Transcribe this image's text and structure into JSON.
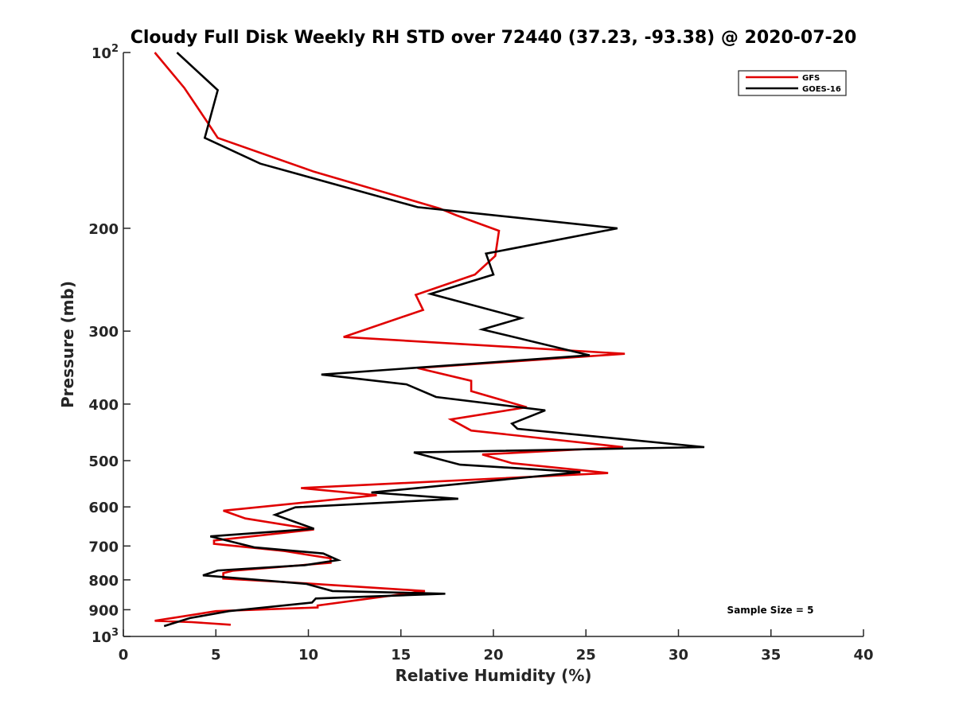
{
  "chart_data": {
    "type": "line",
    "title": "Cloudy Full Disk Weekly RH STD over 72440 (37.23, -93.38) @ 2020-07-20",
    "xlabel": "Relative Humidity (%)",
    "ylabel": "Pressure (mb)",
    "xlim": [
      0,
      40
    ],
    "ylim": [
      100,
      1000
    ],
    "y_scale": "log",
    "y_reversed": true,
    "x_ticks": [
      0,
      5,
      10,
      15,
      20,
      25,
      30,
      35,
      40
    ],
    "x_tick_labels": [
      "0",
      "5",
      "10",
      "15",
      "20",
      "25",
      "30",
      "35",
      "40"
    ],
    "y_ticks": [
      100,
      200,
      300,
      400,
      500,
      600,
      700,
      800,
      900,
      1000
    ],
    "y_tick_labels": [
      {
        "base": "10",
        "exp": "2"
      },
      {
        "base": "200",
        "exp": ""
      },
      {
        "base": "300",
        "exp": ""
      },
      {
        "base": "400",
        "exp": ""
      },
      {
        "base": "500",
        "exp": ""
      },
      {
        "base": "600",
        "exp": ""
      },
      {
        "base": "700",
        "exp": ""
      },
      {
        "base": "800",
        "exp": ""
      },
      {
        "base": "900",
        "exp": ""
      },
      {
        "base": "10",
        "exp": "3"
      }
    ],
    "grid": false,
    "legend_position": "top-right",
    "annotation": "Sample Size = 5",
    "series": [
      {
        "name": "GFS",
        "color": "#e00000",
        "points": [
          [
            1.7,
            100
          ],
          [
            3.3,
            115
          ],
          [
            4.5,
            131
          ],
          [
            5.1,
            140
          ],
          [
            10.3,
            160
          ],
          [
            17.1,
            185
          ],
          [
            18.0,
            190
          ],
          [
            20.3,
            202
          ],
          [
            20.1,
            223
          ],
          [
            19.0,
            240
          ],
          [
            15.8,
            260
          ],
          [
            16.2,
            276
          ],
          [
            11.9,
            307
          ],
          [
            27.1,
            328
          ],
          [
            15.9,
            347
          ],
          [
            18.8,
            365
          ],
          [
            18.8,
            380
          ],
          [
            21.8,
            405
          ],
          [
            17.7,
            425
          ],
          [
            18.8,
            444
          ],
          [
            27.0,
            474
          ],
          [
            19.4,
            488
          ],
          [
            21.0,
            505
          ],
          [
            26.2,
            525
          ],
          [
            9.6,
            557
          ],
          [
            13.7,
            573
          ],
          [
            5.4,
            609
          ],
          [
            6.6,
            628
          ],
          [
            10.3,
            656
          ],
          [
            4.9,
            685
          ],
          [
            4.9,
            694
          ],
          [
            8.7,
            714
          ],
          [
            11.2,
            735
          ],
          [
            11.2,
            748
          ],
          [
            5.9,
            772
          ],
          [
            5.4,
            779
          ],
          [
            5.4,
            796
          ],
          [
            9.0,
            808
          ],
          [
            16.3,
            836
          ],
          [
            10.5,
            885
          ],
          [
            10.5,
            892
          ],
          [
            5.0,
            905
          ],
          [
            1.7,
            940
          ],
          [
            3.7,
            945
          ],
          [
            5.8,
            955
          ]
        ]
      },
      {
        "name": "GOES-16",
        "color": "#000000",
        "points": [
          [
            2.9,
            100
          ],
          [
            5.1,
            116
          ],
          [
            4.4,
            140
          ],
          [
            7.4,
            155
          ],
          [
            15.9,
            184
          ],
          [
            26.7,
            200
          ],
          [
            19.6,
            221
          ],
          [
            20.0,
            240
          ],
          [
            16.6,
            259
          ],
          [
            21.5,
            285
          ],
          [
            19.4,
            298
          ],
          [
            25.2,
            330
          ],
          [
            10.7,
            356
          ],
          [
            15.3,
            370
          ],
          [
            16.9,
            389
          ],
          [
            22.8,
            410
          ],
          [
            21.0,
            432
          ],
          [
            21.3,
            441
          ],
          [
            31.4,
            474
          ],
          [
            15.7,
            484
          ],
          [
            18.2,
            508
          ],
          [
            24.7,
            523
          ],
          [
            13.4,
            567
          ],
          [
            18.1,
            581
          ],
          [
            9.3,
            601
          ],
          [
            8.2,
            619
          ],
          [
            10.3,
            654
          ],
          [
            4.7,
            674
          ],
          [
            7.1,
            704
          ],
          [
            10.8,
            721
          ],
          [
            11.6,
            740
          ],
          [
            9.8,
            755
          ],
          [
            5.1,
            771
          ],
          [
            4.3,
            786
          ],
          [
            9.9,
            813
          ],
          [
            11.3,
            836
          ],
          [
            17.4,
            845
          ],
          [
            10.4,
            861
          ],
          [
            10.2,
            875
          ],
          [
            5.7,
            905
          ],
          [
            3.6,
            930
          ],
          [
            2.2,
            960
          ]
        ]
      }
    ]
  }
}
